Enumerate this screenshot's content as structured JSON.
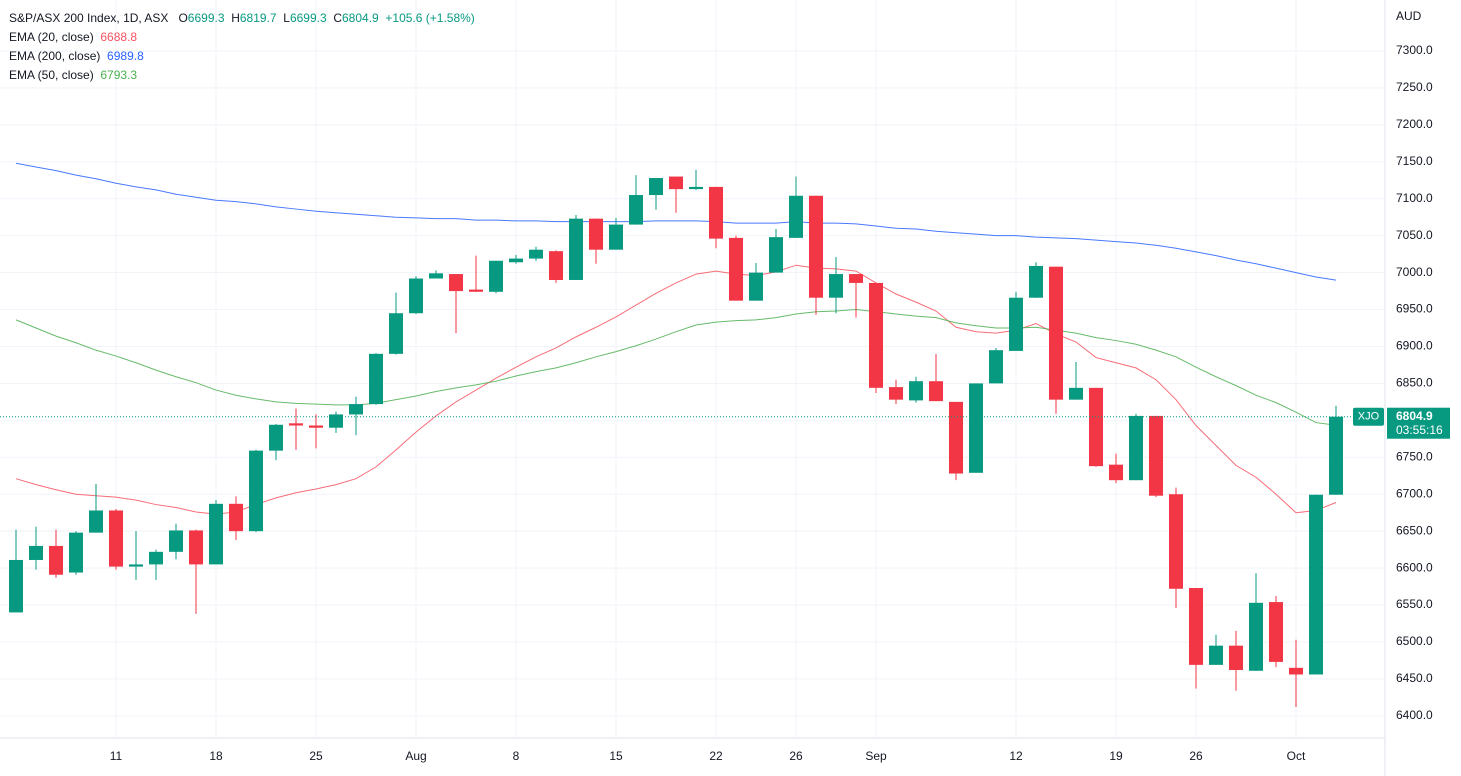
{
  "chart_data": {
    "type": "candlestick",
    "title": "S&P/ASX 200 Index, 1D, ASX",
    "ohlc_labels": [
      "O",
      "H",
      "L",
      "C"
    ],
    "change": "+105.6 (+1.58%)",
    "currency": "AUD",
    "symbol": "XJO",
    "countdown": "03:55:16",
    "up_color": "#089981",
    "down_color": "#f23645",
    "grid": true,
    "categories": [
      null,
      null,
      null,
      null,
      null,
      "11",
      null,
      null,
      null,
      null,
      "18",
      null,
      null,
      null,
      null,
      "25",
      null,
      null,
      null,
      null,
      "Aug",
      null,
      null,
      null,
      null,
      "8",
      null,
      null,
      null,
      null,
      "15",
      null,
      null,
      null,
      null,
      "22",
      null,
      null,
      null,
      "26",
      null,
      null,
      null,
      "Sep",
      null,
      null,
      null,
      null,
      null,
      null,
      "12",
      null,
      null,
      null,
      null,
      "19",
      null,
      null,
      null,
      "26",
      null,
      null,
      null,
      null,
      "Oct",
      null,
      null
    ],
    "open": [
      6540,
      6611,
      6630,
      6594,
      6648,
      6678,
      6602,
      6605,
      6622,
      6651,
      6605,
      6687,
      6650,
      6759,
      6796,
      6793,
      6790,
      6808,
      6822,
      6890,
      6945,
      6992,
      6998,
      6977,
      6974,
      7014,
      7019,
      7029,
      6990,
      7073,
      7031,
      7065,
      7105,
      7130,
      7113,
      7116,
      7047,
      6962,
      7000,
      7047,
      7104,
      6966,
      6998,
      6986,
      6845,
      6827,
      6853,
      6825,
      6729,
      6850,
      6894,
      6966,
      7008,
      6828,
      6844,
      6740,
      6719,
      6806,
      6700,
      6573,
      6469,
      6495,
      6461,
      6554,
      6465,
      6456,
      6699.3
    ],
    "high": [
      6652,
      6656,
      6652,
      6650,
      6714,
      6680,
      6650,
      6625,
      6660,
      6652,
      6692,
      6697,
      6760,
      6795,
      6816,
      6808,
      6812,
      6832,
      6891,
      6973,
      6995,
      7003,
      6998,
      7023,
      7016,
      7024,
      7035,
      7030,
      7078,
      7073,
      7074,
      7132,
      7128,
      7130,
      7139,
      7116,
      7050,
      7013,
      7059,
      7130,
      7104,
      7021,
      6998,
      6986,
      6855,
      6859,
      6890,
      6825,
      6850,
      6898,
      6974,
      7014,
      7008,
      6879,
      6844,
      6755,
      6809,
      6806,
      6709,
      6573,
      6510,
      6515,
      6593,
      6562,
      6503,
      6699.3,
      6819.7
    ],
    "low": [
      6540,
      6598,
      6587,
      6591,
      6648,
      6598,
      6584,
      6584,
      6612,
      6538,
      6605,
      6638,
      6649,
      6746,
      6760,
      6762,
      6783,
      6780,
      6821,
      6889,
      6944,
      6992,
      6918,
      6974,
      6972,
      7012,
      7016,
      6986,
      6990,
      7012,
      7031,
      7065,
      7085,
      7081,
      7112,
      7033,
      6962,
      6962,
      7000,
      7047,
      6943,
      6945,
      6939,
      6837,
      6822,
      6824,
      6826,
      6719,
      6729,
      6850,
      6894,
      6966,
      6809,
      6828,
      6737,
      6715,
      6719,
      6696,
      6546,
      6437,
      6469,
      6434,
      6461,
      6466,
      6412,
      6456,
      6699.3
    ],
    "close": [
      6611,
      6630,
      6591,
      6648,
      6678,
      6602,
      6605,
      6622,
      6651,
      6605,
      6687,
      6650,
      6759,
      6794,
      6793,
      6790,
      6808,
      6822,
      6890,
      6945,
      6992,
      6999,
      6975,
      6974,
      7016,
      7019,
      7031,
      6990,
      7073,
      7031,
      7065,
      7105,
      7128,
      7113,
      7116,
      7046,
      6962,
      7000,
      7048,
      7104,
      6966,
      6998,
      6986,
      6844,
      6828,
      6853,
      6826,
      6728,
      6850,
      6895,
      6966,
      7009,
      6828,
      6844,
      6738,
      6719,
      6806,
      6698,
      6572,
      6469,
      6495,
      6462,
      6553,
      6473,
      6456,
      6699.3,
      6804.9
    ],
    "series": [
      {
        "name": "EMA (20, close)",
        "color": "#f7525f",
        "values": [
          6721,
          6713,
          6706,
          6700,
          6698,
          6696,
          6692,
          6686,
          6682,
          6676,
          6673,
          6676,
          6686,
          6695,
          6702,
          6707,
          6713,
          6721,
          6737,
          6760,
          6784,
          6806,
          6825,
          6841,
          6857,
          6872,
          6886,
          6898,
          6913,
          6926,
          6940,
          6956,
          6972,
          6986,
          6998,
          7002,
          6998,
          6996,
          7001,
          7010,
          7006,
          7005,
          7002,
          6986,
          6971,
          6960,
          6948,
          6926,
          6920,
          6918,
          6922,
          6931,
          6917,
          6906,
          6885,
          6878,
          6871,
          6855,
          6828,
          6793,
          6766,
          6739,
          6723,
          6700,
          6675,
          6678,
          6688.8
        ]
      },
      {
        "name": "EMA (200, close)",
        "color": "#2962ff",
        "values": [
          7148,
          7143,
          7138,
          7132,
          7127,
          7121,
          7116,
          7112,
          7106,
          7102,
          7098,
          7096,
          7093,
          7089,
          7086,
          7083,
          7081,
          7079,
          7077,
          7075,
          7074,
          7073,
          7073,
          7071,
          7071,
          7070,
          7070,
          7069,
          7069,
          7069,
          7069,
          7069,
          7070,
          7070,
          7070,
          7069,
          7067,
          7067,
          7067,
          7069,
          7067,
          7067,
          7066,
          7063,
          7060,
          7059,
          7056,
          7054,
          7052,
          7050,
          7050,
          7048,
          7047,
          7046,
          7044,
          7042,
          7040,
          7037,
          7033,
          7028,
          7023,
          7017,
          7012,
          7006,
          7000,
          6994,
          6989.8
        ]
      },
      {
        "name": "EMA (50, close)",
        "color": "#4caf50",
        "values": [
          6936,
          6925,
          6914,
          6905,
          6895,
          6887,
          6878,
          6868,
          6859,
          6851,
          6841,
          6834,
          6829,
          6825,
          6823,
          6822,
          6821,
          6821,
          6823,
          6828,
          6833,
          6839,
          6844,
          6848,
          6853,
          6860,
          6866,
          6871,
          6878,
          6886,
          6893,
          6901,
          6910,
          6920,
          6929,
          6933,
          6935,
          6936,
          6939,
          6944,
          6947,
          6948,
          6950,
          6947,
          6944,
          6941,
          6939,
          6932,
          6928,
          6925,
          6925,
          6926,
          6922,
          6918,
          6912,
          6908,
          6903,
          6895,
          6886,
          6872,
          6859,
          6847,
          6834,
          6824,
          6811,
          6797,
          6793.3
        ]
      }
    ],
    "ylim": [
      6370,
      7369
    ],
    "yticks": [
      {
        "value": 6400,
        "label": "6400.0"
      },
      {
        "value": 6450,
        "label": "6450.0"
      },
      {
        "value": 6500,
        "label": "6500.0"
      },
      {
        "value": 6550,
        "label": "6550.0"
      },
      {
        "value": 6600,
        "label": "6600.0"
      },
      {
        "value": 6650,
        "label": "6650.0"
      },
      {
        "value": 6700,
        "label": "6700.0"
      },
      {
        "value": 6750,
        "label": "6750.0"
      },
      {
        "value": 6800,
        "label": "6800.0"
      },
      {
        "value": 6850,
        "label": "6850.0"
      },
      {
        "value": 6900,
        "label": "6900.0"
      },
      {
        "value": 6950,
        "label": "6950.0"
      },
      {
        "value": 7000,
        "label": "7000.0"
      },
      {
        "value": 7050,
        "label": "7050.0"
      },
      {
        "value": 7100,
        "label": "7100.0"
      },
      {
        "value": 7150,
        "label": "7150.0"
      },
      {
        "value": 7200,
        "label": "7200.0"
      },
      {
        "value": 7250,
        "label": "7250.0"
      },
      {
        "value": 7300,
        "label": "7300.0"
      }
    ]
  }
}
